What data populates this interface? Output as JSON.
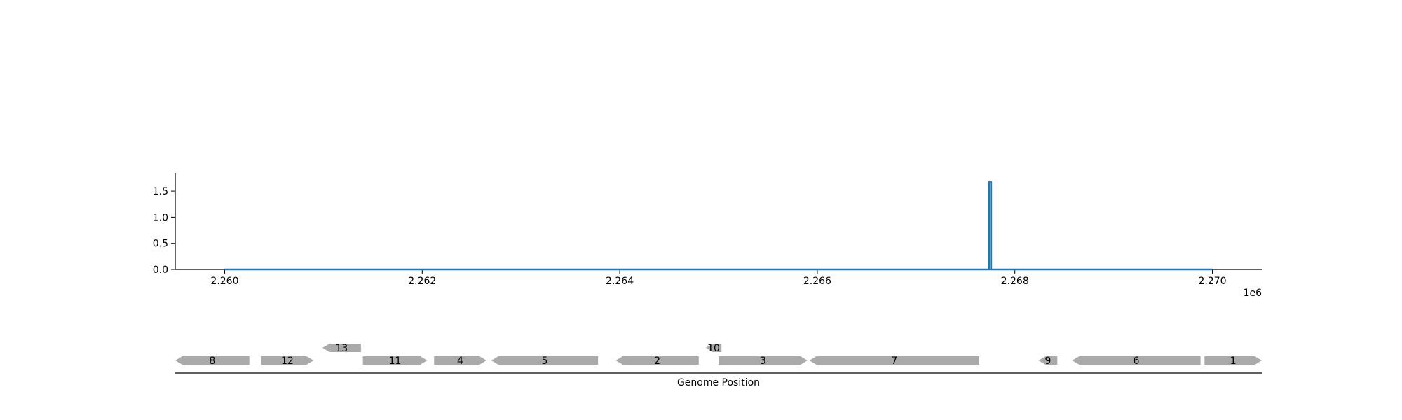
{
  "chart_data": [
    {
      "type": "line",
      "title": "",
      "xlabel": "",
      "ylabel": "",
      "x_offset_label": "1e6",
      "xlim": [
        2.2595,
        2.2705
      ],
      "ylim": [
        0,
        1.85
      ],
      "x_ticks": [
        2.26,
        2.262,
        2.264,
        2.266,
        2.268,
        2.27
      ],
      "x_tick_labels": [
        "2.260",
        "2.262",
        "2.264",
        "2.266",
        "2.268",
        "2.270"
      ],
      "y_ticks": [
        0.0,
        0.5,
        1.0,
        1.5
      ],
      "y_tick_labels": [
        "0.0",
        "0.5",
        "1.0",
        "1.5"
      ],
      "grid": false,
      "color": "#1f77b4",
      "series": [
        {
          "x": [
            2.26,
            2.26774,
            2.26774,
            2.26776,
            2.26776,
            2.27
          ],
          "y": [
            0,
            0,
            1.67,
            1.67,
            0,
            0
          ]
        }
      ]
    },
    {
      "type": "gene-map",
      "xlabel": "Genome Position",
      "xlim": [
        2.2595,
        2.2705
      ],
      "gene_color": "#aaaaaa",
      "genes": [
        {
          "label": "8",
          "start": 2.2595,
          "end": 2.26025,
          "strand": "-",
          "row": 0
        },
        {
          "label": "12",
          "start": 2.26037,
          "end": 2.2609,
          "strand": "+",
          "row": 0
        },
        {
          "label": "13",
          "start": 2.26099,
          "end": 2.26138,
          "strand": "-",
          "row": 1
        },
        {
          "label": "11",
          "start": 2.2614,
          "end": 2.26205,
          "strand": "+",
          "row": 0
        },
        {
          "label": "4",
          "start": 2.26212,
          "end": 2.26265,
          "strand": "+",
          "row": 0
        },
        {
          "label": "5",
          "start": 2.2627,
          "end": 2.26378,
          "strand": "-",
          "row": 0
        },
        {
          "label": "2",
          "start": 2.26396,
          "end": 2.2648,
          "strand": "-",
          "row": 0
        },
        {
          "label": "10",
          "start": 2.26487,
          "end": 2.26503,
          "strand": "-",
          "row": 1
        },
        {
          "label": "3",
          "start": 2.265,
          "end": 2.2659,
          "strand": "+",
          "row": 0
        },
        {
          "label": "7",
          "start": 2.26592,
          "end": 2.26764,
          "strand": "-",
          "row": 0
        },
        {
          "label": "9",
          "start": 2.26824,
          "end": 2.26843,
          "strand": "-",
          "row": 0
        },
        {
          "label": "6",
          "start": 2.26858,
          "end": 2.26988,
          "strand": "-",
          "row": 0
        },
        {
          "label": "1",
          "start": 2.26992,
          "end": 2.2705,
          "strand": "+",
          "row": 0
        }
      ]
    }
  ]
}
